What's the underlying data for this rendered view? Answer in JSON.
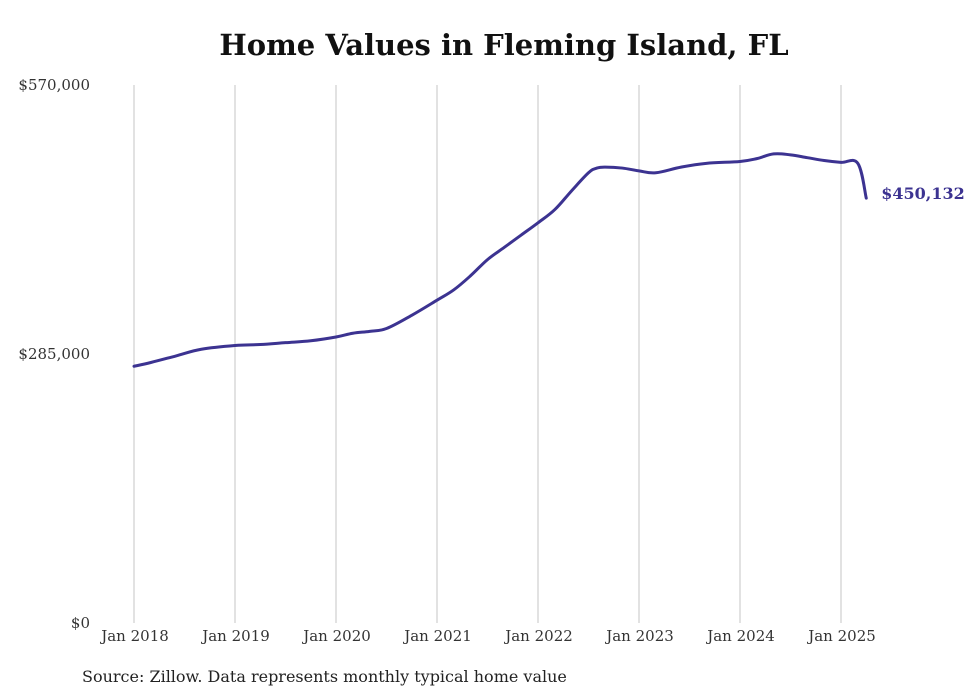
{
  "chart_data": {
    "type": "line",
    "title": "Home Values in Fleming Island, FL",
    "subtitle": "",
    "xlabel": "",
    "ylabel": "",
    "ylim": [
      0,
      570000
    ],
    "y_ticks": [
      {
        "value": 0,
        "label": "$0"
      },
      {
        "value": 285000,
        "label": "$285,000"
      },
      {
        "value": 570000,
        "label": "$570,000"
      }
    ],
    "x_ticks": [
      {
        "date": "2018-01",
        "label": "Jan 2018"
      },
      {
        "date": "2019-01",
        "label": "Jan 2019"
      },
      {
        "date": "2020-01",
        "label": "Jan 2020"
      },
      {
        "date": "2021-01",
        "label": "Jan 2021"
      },
      {
        "date": "2022-01",
        "label": "Jan 2022"
      },
      {
        "date": "2023-01",
        "label": "Jan 2023"
      },
      {
        "date": "2024-01",
        "label": "Jan 2024"
      },
      {
        "date": "2025-01",
        "label": "Jan 2025"
      }
    ],
    "xlim": [
      "2018-01",
      "2025-04"
    ],
    "grid": {
      "vertical": true,
      "horizontal": false
    },
    "line_color": "#3c3391",
    "end_label": "$450,132",
    "series": [
      {
        "name": "",
        "x": [
          "2018-01",
          "2018-03",
          "2018-06",
          "2018-09",
          "2019-01",
          "2019-04",
          "2019-07",
          "2019-10",
          "2020-01",
          "2020-03",
          "2020-05",
          "2020-07",
          "2020-10",
          "2021-01",
          "2021-03",
          "2021-05",
          "2021-07",
          "2021-09",
          "2021-11",
          "2022-01",
          "2022-03",
          "2022-05",
          "2022-07",
          "2022-08",
          "2022-09",
          "2022-11",
          "2023-01",
          "2023-03",
          "2023-06",
          "2023-09",
          "2024-01",
          "2024-03",
          "2024-05",
          "2024-07",
          "2024-09",
          "2024-11",
          "2025-01",
          "2025-03",
          "2025-04"
        ],
        "y": [
          272000,
          276000,
          283000,
          290000,
          294000,
          295000,
          297000,
          299000,
          303000,
          307000,
          309000,
          312000,
          326000,
          342000,
          353000,
          368000,
          385000,
          398000,
          411000,
          424000,
          438000,
          458000,
          477000,
          482000,
          483000,
          482000,
          479000,
          477000,
          483000,
          487000,
          489000,
          492000,
          497000,
          496000,
          493000,
          490000,
          488000,
          487000,
          450132
        ]
      }
    ]
  },
  "footer": {
    "source": "Source: Zillow. Data represents monthly typical home value"
  }
}
